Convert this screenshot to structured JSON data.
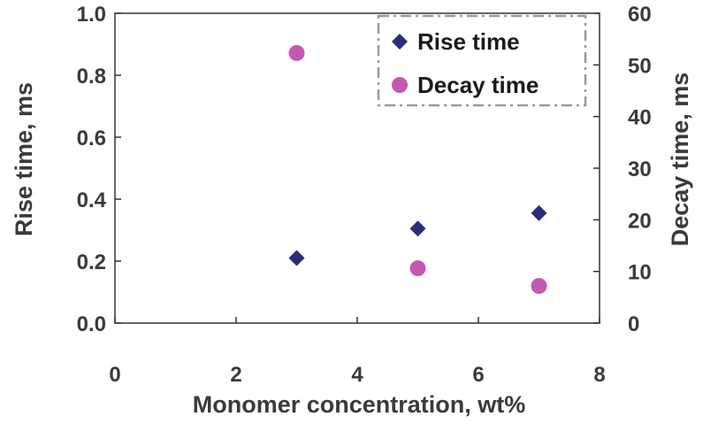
{
  "chart_data": {
    "type": "scatter",
    "xlabel": "Monomer concentration, wt%",
    "ylabel": "Rise time, ms",
    "y2label": "Decay time, ms",
    "xlim": [
      0,
      8
    ],
    "ylim": [
      0,
      1.0
    ],
    "y2lim": [
      0,
      60
    ],
    "x_ticks": [
      "0",
      "2",
      "4",
      "6",
      "8"
    ],
    "y_ticks": [
      "0.0",
      "0.2",
      "0.4",
      "0.6",
      "0.8",
      "1.0"
    ],
    "y2_ticks": [
      "0",
      "10",
      "20",
      "30",
      "40",
      "50",
      "60"
    ],
    "grid": false,
    "legend_position": "top-right",
    "series": [
      {
        "name": "Rise time",
        "axis": "left",
        "marker": "diamond",
        "color": "#2b2d7a",
        "x": [
          3,
          5,
          7
        ],
        "y": [
          0.21,
          0.305,
          0.355
        ]
      },
      {
        "name": "Decay time",
        "axis": "right",
        "marker": "circle",
        "color": "#c35ab1",
        "x": [
          3,
          5,
          7
        ],
        "y": [
          52.3,
          10.6,
          7.2
        ]
      }
    ]
  }
}
